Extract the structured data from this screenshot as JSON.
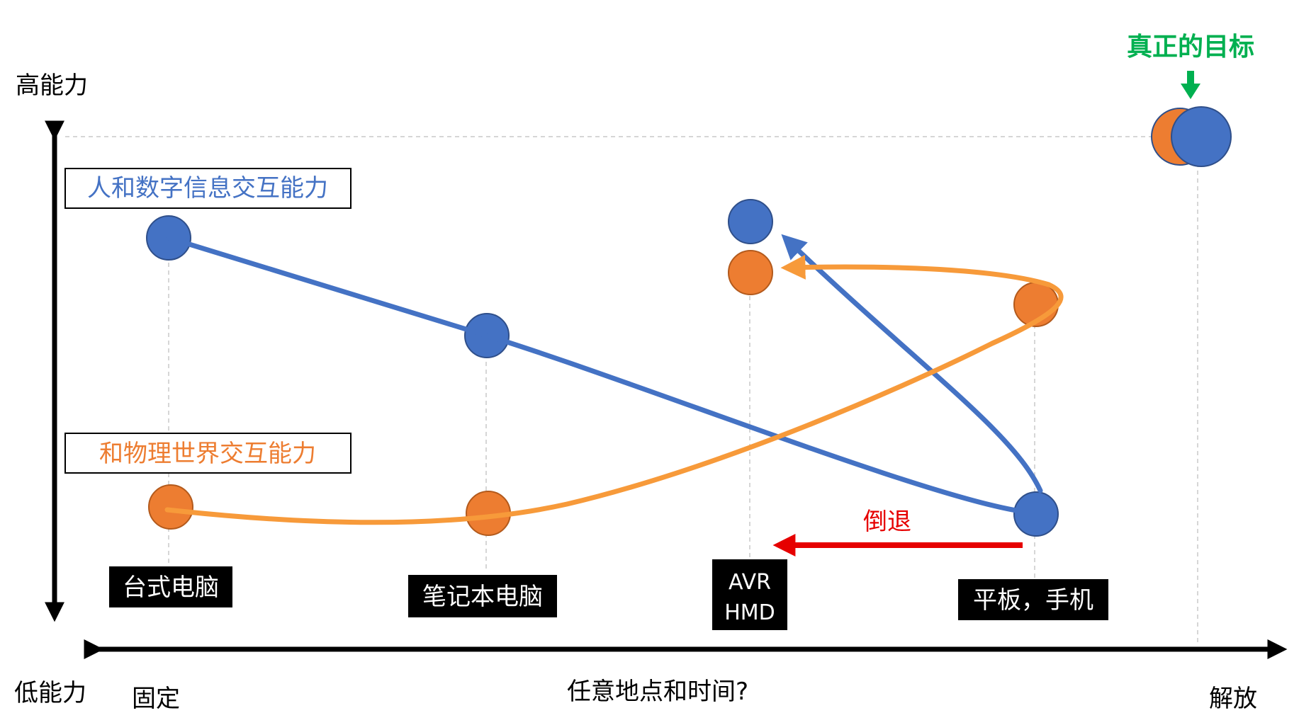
{
  "axis": {
    "y_high": "高能力",
    "y_low": "低能力",
    "x_left": "固定",
    "x_center": "任意地点和时间?",
    "x_right": "解放"
  },
  "legend": {
    "digital": "人和数字信息交互能力",
    "physical": "和物理世界交互能力"
  },
  "devices": [
    {
      "name": "desktop",
      "lines": [
        "台式电脑"
      ]
    },
    {
      "name": "laptop",
      "lines": [
        "笔记本电脑"
      ]
    },
    {
      "name": "hmd",
      "lines": [
        "AVR",
        "HMD"
      ]
    },
    {
      "name": "mobile",
      "lines": [
        "平板，手机"
      ]
    }
  ],
  "annotations": {
    "target": "真正的目标",
    "regress": "倒退"
  },
  "colors": {
    "digital": "#4472C4",
    "physical": "#ED7D31",
    "physical_curve": "#F79A3A",
    "target": "#00B050",
    "regress": "#E60000",
    "axis": "#000000",
    "label_bg": "#000000",
    "label_text": "#ffffff",
    "guide": "#bfbfbf"
  }
}
